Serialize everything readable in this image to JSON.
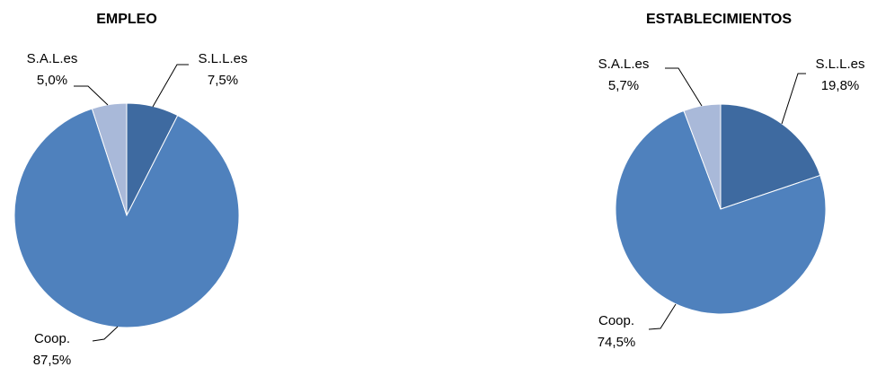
{
  "chart_data": [
    {
      "type": "pie",
      "title": "EMPLEO",
      "categories": [
        "S.L.L.es",
        "Coop.",
        "S.A.L.es"
      ],
      "values": [
        7.5,
        87.5,
        5.0
      ],
      "value_labels": [
        "7,5%",
        "87,5%",
        "5,0%"
      ],
      "colors": [
        "#3e6aa0",
        "#4f81bd",
        "#a9b9d9"
      ]
    },
    {
      "type": "pie",
      "title": "ESTABLECIMIENTOS",
      "categories": [
        "S.L.L.es",
        "Coop.",
        "S.A.L.es"
      ],
      "values": [
        19.8,
        74.5,
        5.7
      ],
      "value_labels": [
        "19,8%",
        "74,5%",
        "5,7%"
      ],
      "colors": [
        "#3e6aa0",
        "#4f81bd",
        "#a9b9d9"
      ]
    }
  ]
}
